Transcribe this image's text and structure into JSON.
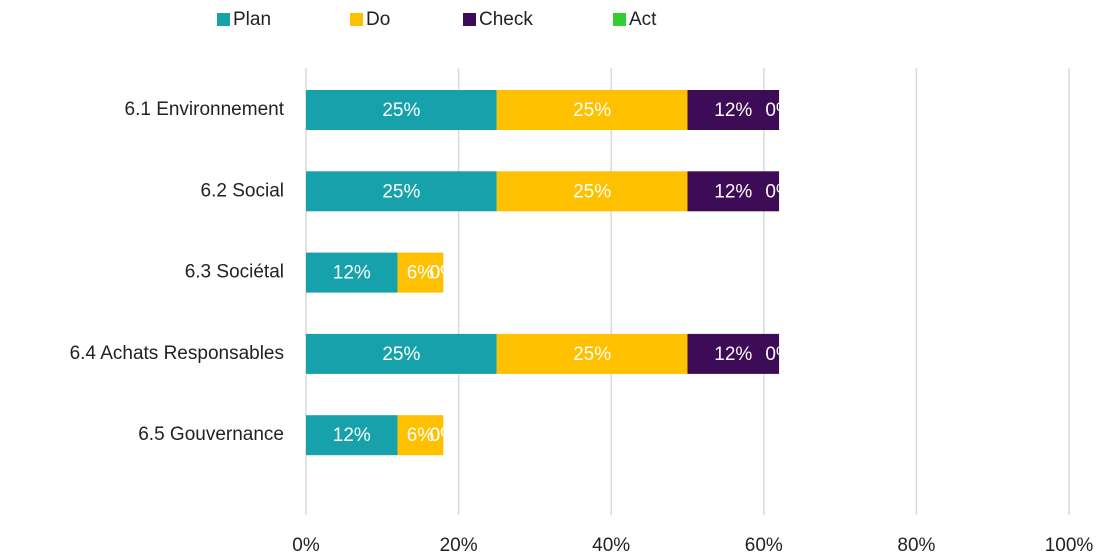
{
  "chart_data": {
    "type": "stacked-barh",
    "categories": [
      "6.1 Environnement",
      "6.2 Social",
      "6.3 Sociétal",
      "6.4 Achats Responsables",
      "6.5 Gouvernance"
    ],
    "series": [
      {
        "name": "Plan",
        "color": "#17a2ab",
        "values": [
          25,
          25,
          12,
          25,
          12
        ],
        "value_labels": [
          "25%",
          "25%",
          "12%",
          "25%",
          "12%"
        ]
      },
      {
        "name": "Do",
        "color": "#ffc000",
        "values": [
          25,
          25,
          6,
          25,
          6
        ],
        "value_labels": [
          "25%",
          "25%",
          "6%",
          "25%",
          "6%"
        ]
      },
      {
        "name": "Check",
        "color": "#3e0c56",
        "values": [
          12,
          12,
          0,
          12,
          0
        ],
        "value_labels": [
          "12%",
          "12%",
          "0%",
          "12%",
          "0%"
        ]
      },
      {
        "name": "Act",
        "color": "#33cc33",
        "values": [
          0,
          0,
          0,
          0,
          0
        ],
        "value_labels": [
          "0%",
          "0%",
          "0%",
          "0%",
          "0%"
        ]
      }
    ],
    "xlim": [
      0,
      100
    ],
    "xticks": [
      {
        "value": 0,
        "label": "0%"
      },
      {
        "value": 20,
        "label": "20%"
      },
      {
        "value": 40,
        "label": "40%"
      },
      {
        "value": 60,
        "label": "60%"
      },
      {
        "value": 80,
        "label": "80%"
      },
      {
        "value": 100,
        "label": "100%"
      }
    ],
    "grid": true,
    "legend": "top"
  }
}
